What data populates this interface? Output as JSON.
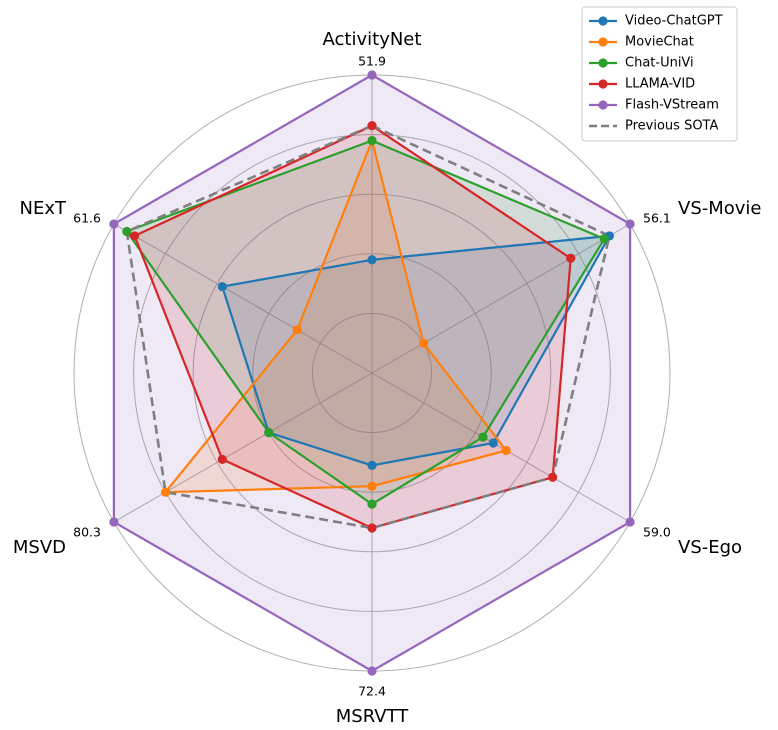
{
  "chart_data": {
    "type": "radar",
    "axes": [
      {
        "name": "ActivityNet",
        "max_label": "51.9"
      },
      {
        "name": "VS-Movie",
        "max_label": "56.1"
      },
      {
        "name": "VS-Ego",
        "max_label": "59.0"
      },
      {
        "name": "MSRVTT",
        "max_label": "72.4"
      },
      {
        "name": "MSVD",
        "max_label": "80.3"
      },
      {
        "name": "NExT",
        "max_label": "61.6"
      }
    ],
    "value_scale": "fraction of axis maximum (0-1)",
    "grid": true,
    "legend_position": "top-right",
    "series": [
      {
        "name": "Video-ChatGPT",
        "color": "#1f77b4",
        "dashed": false,
        "filled": true,
        "markers": true,
        "values": [
          0.38,
          0.92,
          0.47,
          0.31,
          0.4,
          0.58
        ]
      },
      {
        "name": "MovieChat",
        "color": "#ff7f0e",
        "dashed": false,
        "filled": true,
        "markers": true,
        "values": [
          0.78,
          0.2,
          0.52,
          0.38,
          0.8,
          0.29
        ]
      },
      {
        "name": "Chat-UniVi",
        "color": "#2ca02c",
        "dashed": false,
        "filled": true,
        "markers": true,
        "values": [
          0.78,
          0.9,
          0.43,
          0.44,
          0.4,
          0.95
        ]
      },
      {
        "name": "LLAMA-VID",
        "color": "#d62728",
        "dashed": false,
        "filled": true,
        "markers": true,
        "values": [
          0.83,
          0.77,
          0.7,
          0.52,
          0.58,
          0.92
        ]
      },
      {
        "name": "Flash-VStream",
        "color": "#9467bd",
        "dashed": false,
        "filled": true,
        "markers": true,
        "values": [
          1.0,
          1.0,
          1.0,
          1.0,
          1.0,
          1.0
        ]
      },
      {
        "name": "Previous SOTA",
        "color": "#7f7f7f",
        "dashed": true,
        "filled": false,
        "markers": false,
        "values": [
          0.83,
          0.92,
          0.7,
          0.52,
          0.8,
          0.95
        ]
      }
    ]
  }
}
